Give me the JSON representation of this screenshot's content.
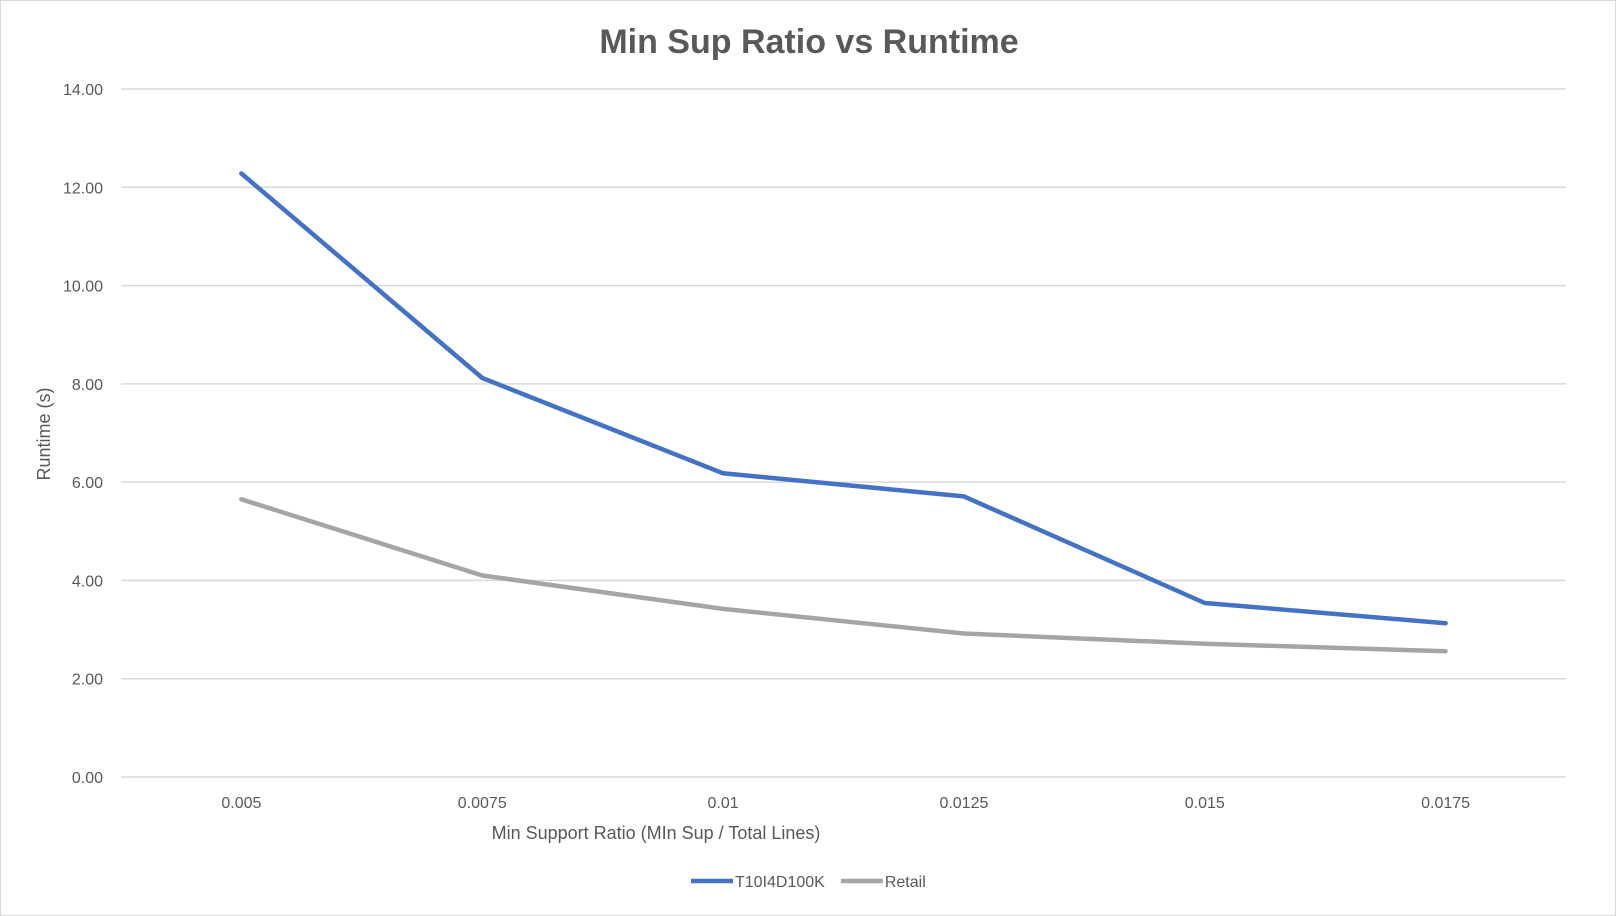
{
  "chart_data": {
    "type": "line",
    "title": "Min Sup Ratio vs Runtime",
    "xlabel": "Min Support Ratio (MIn Sup / Total Lines)",
    "ylabel": "Runtime (s)",
    "categories": [
      "0.005",
      "0.0075",
      "0.01",
      "0.0125",
      "0.015",
      "0.0175"
    ],
    "y_ticks": [
      "0.00",
      "2.00",
      "4.00",
      "6.00",
      "8.00",
      "10.00",
      "12.00",
      "14.00"
    ],
    "ylim": [
      0,
      14
    ],
    "grid": true,
    "legend_position": "bottom",
    "series": [
      {
        "name": "T10I4D100K",
        "color": "#4472c4",
        "values": [
          12.28,
          8.12,
          6.18,
          5.71,
          3.54,
          3.13
        ]
      },
      {
        "name": "Retail",
        "color": "#a5a5a5",
        "values": [
          5.65,
          4.1,
          3.42,
          2.92,
          2.71,
          2.56
        ]
      }
    ]
  }
}
